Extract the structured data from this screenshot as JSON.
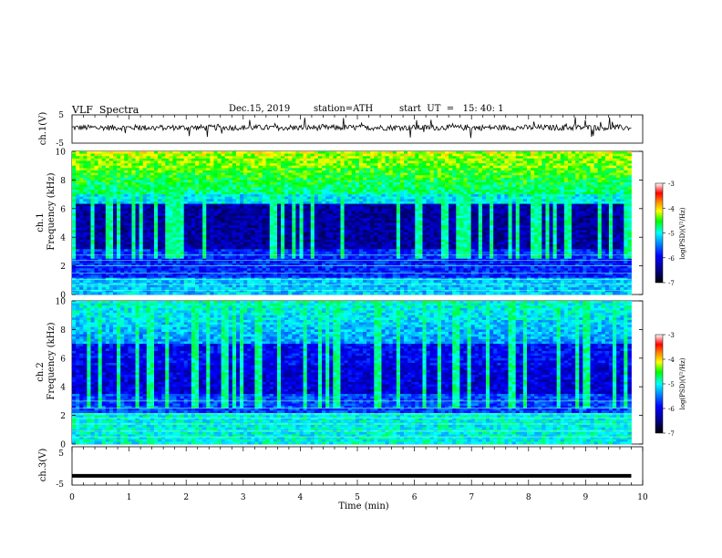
{
  "header": {
    "title": "VLF  Spectra",
    "date": "Dec.15, 2019",
    "station": "station=ATH",
    "start": "start  UT  =   15: 40: 1"
  },
  "chart_data": [
    {
      "type": "line",
      "panel": "ch1-waveform",
      "ylabel": "ch.1(V)",
      "ylim": [
        -5,
        5
      ],
      "yticks": [
        "5",
        "-5"
      ],
      "xlim": [
        0,
        10
      ],
      "series": [
        {
          "values_baseline_V": 0.5,
          "noise_amplitude_V": 1.0,
          "spike_amplitude_V": 3.0
        }
      ],
      "line_color": "#000000"
    },
    {
      "type": "heatmap",
      "panel": "ch1-spectrogram",
      "ylabel": "ch.1\nFrequency (kHz)",
      "ylim": [
        0,
        10
      ],
      "yticks": [
        "0",
        "2",
        "4",
        "6",
        "8",
        "10"
      ],
      "xlim": [
        0,
        9.8
      ],
      "colorbar": {
        "label": "log(PSD)(V²/Hz)",
        "ticks": [
          "-3",
          "-4",
          "-5",
          "-6",
          "-7"
        ],
        "range": [
          -7,
          -3
        ]
      }
    },
    {
      "type": "heatmap",
      "panel": "ch2-spectrogram",
      "ylabel": "ch.2\nFrequency (kHz)",
      "ylim": [
        0,
        10
      ],
      "yticks": [
        "0",
        "2",
        "4",
        "6",
        "8",
        "10"
      ],
      "xlim": [
        0,
        9.8
      ],
      "colorbar": {
        "label": "log(PSD)(V²/Hz)",
        "ticks": [
          "-3",
          "-4",
          "-5",
          "-6",
          "-7"
        ],
        "range": [
          -7,
          -3
        ]
      }
    },
    {
      "type": "line",
      "panel": "ch3-waveform",
      "ylabel": "ch.3(V)",
      "ylim": [
        -5,
        5
      ],
      "yticks": [
        "5",
        "-5"
      ],
      "xlim": [
        0,
        10
      ],
      "series": [
        {
          "values_baseline_V": -2.6
        }
      ],
      "xlabel": "Time  (min)",
      "xticks": [
        "0",
        "1",
        "2",
        "3",
        "4",
        "5",
        "6",
        "7",
        "8",
        "9",
        "10"
      ],
      "line_color": "#000000"
    }
  ]
}
